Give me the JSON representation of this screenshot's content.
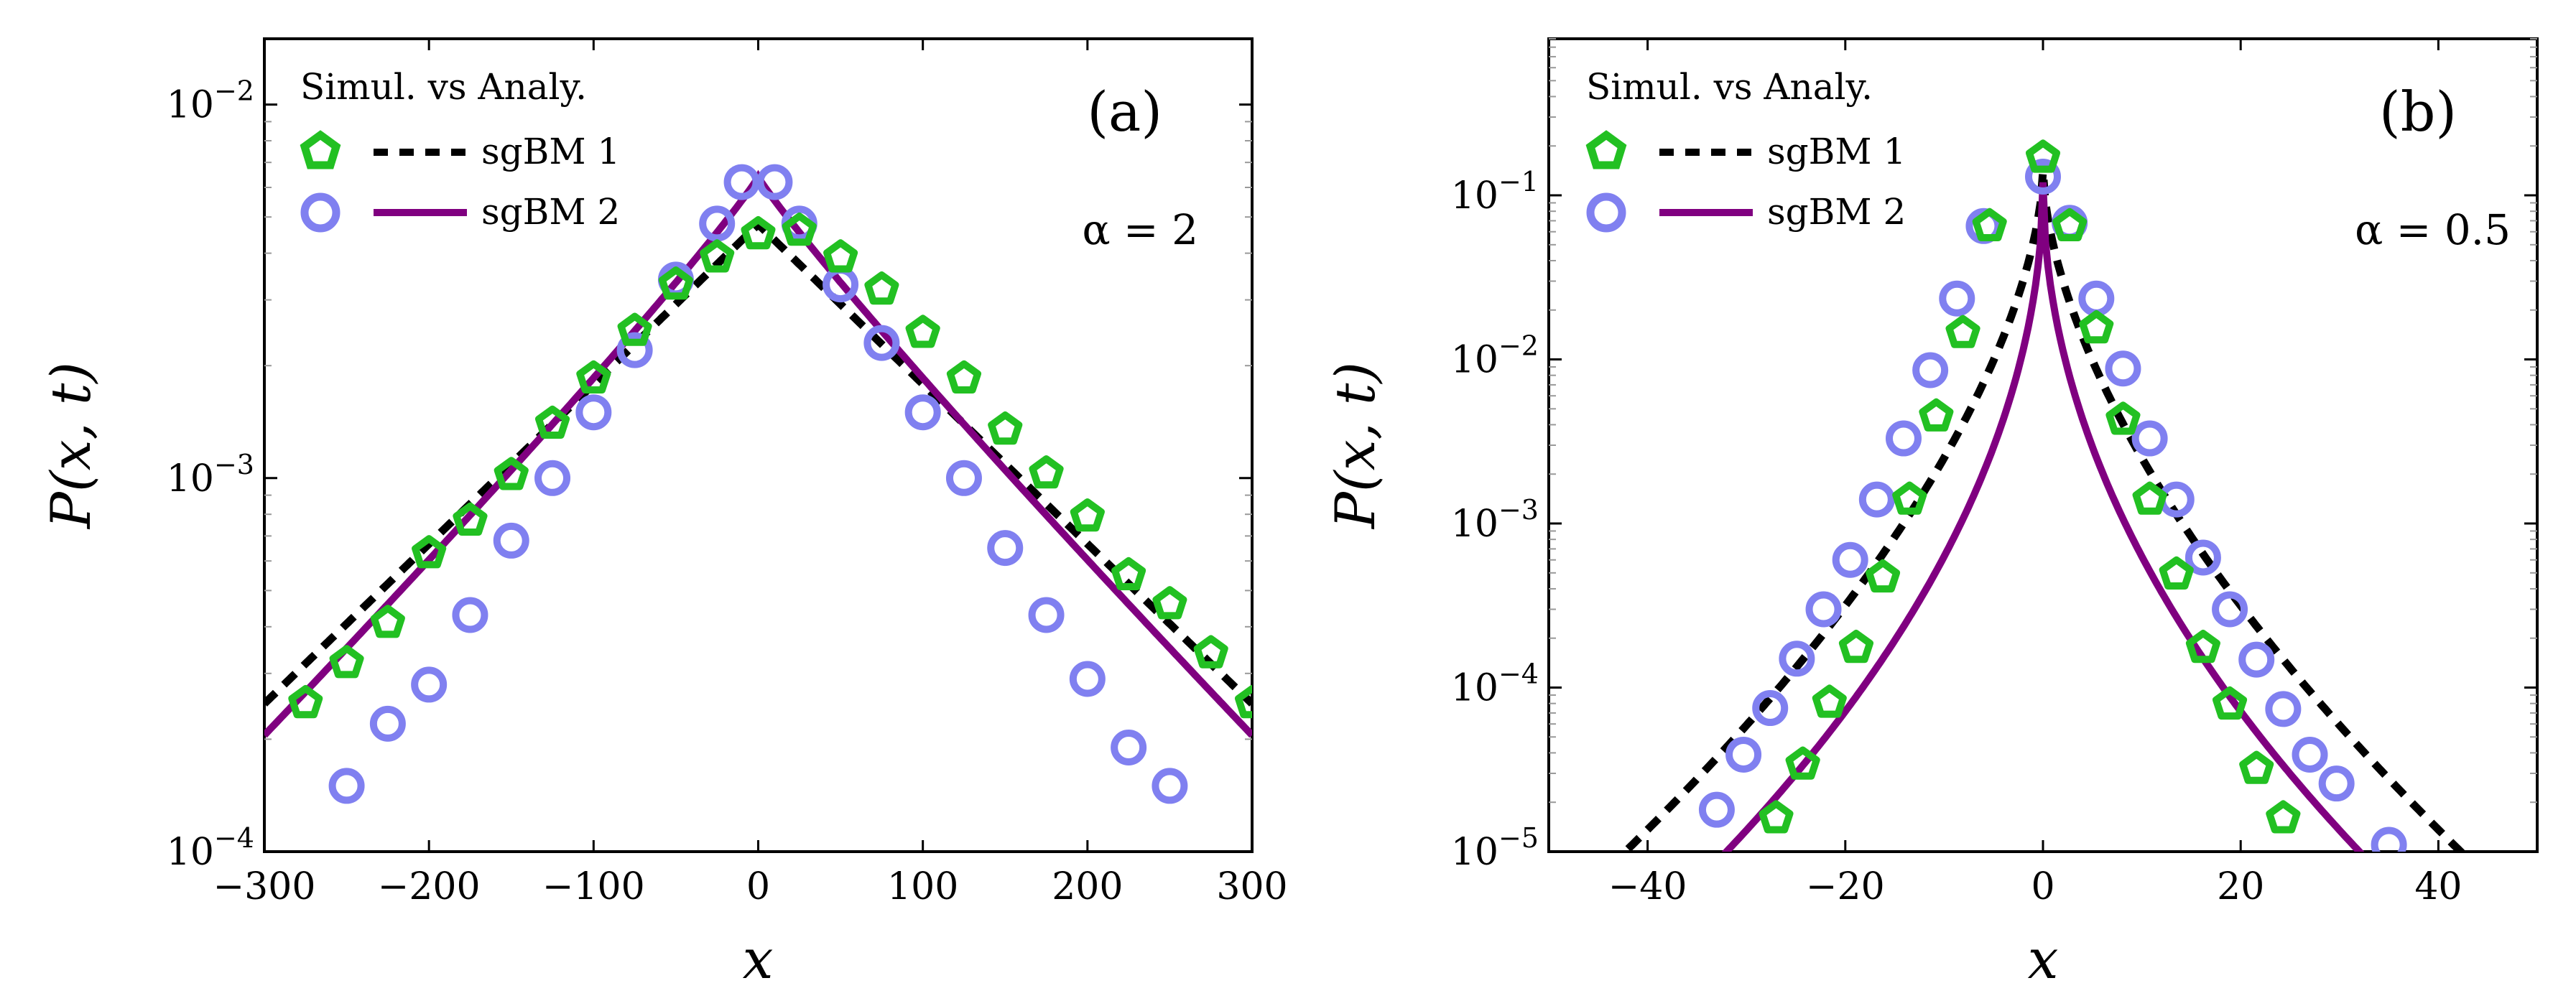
{
  "chart_data": [
    {
      "type": "line",
      "panel_label": "(a)",
      "param_text": "α = 2",
      "xlabel": "x",
      "ylabel": "P(x, t)",
      "xlim": [
        -300,
        300
      ],
      "ylim": [
        0.0001,
        0.015
      ],
      "yscale": "log",
      "legend_title": "Simul. vs Analy.",
      "legend_position": "top-left",
      "xticks": [
        {
          "value": -300,
          "label": "−300"
        },
        {
          "value": -200,
          "label": "−200"
        },
        {
          "value": -100,
          "label": "−100"
        },
        {
          "value": 0,
          "label": "0"
        },
        {
          "value": 100,
          "label": "100"
        },
        {
          "value": 200,
          "label": "200"
        },
        {
          "value": 300,
          "label": "300"
        }
      ],
      "yticks": [
        {
          "value": 0.0001,
          "base": "10",
          "exp": "−4"
        },
        {
          "value": 0.001,
          "base": "10",
          "exp": "−3"
        },
        {
          "value": 0.01,
          "base": "10",
          "exp": "−2"
        }
      ],
      "series": [
        {
          "name": "sgBM 1",
          "color": "#22c022",
          "marker": "pentagon",
          "line_color": "#000000",
          "line_style": "dashed",
          "points": [
            [
              -275,
              0.00025
            ],
            [
              -250,
              0.00032
            ],
            [
              -225,
              0.00041
            ],
            [
              -200,
              0.00063
            ],
            [
              -175,
              0.00077
            ],
            [
              -150,
              0.00102
            ],
            [
              -125,
              0.0014
            ],
            [
              -100,
              0.00185
            ],
            [
              -75,
              0.00248
            ],
            [
              -50,
              0.0033
            ],
            [
              -25,
              0.0039
            ],
            [
              0,
              0.0045
            ],
            [
              25,
              0.0046
            ],
            [
              50,
              0.0039
            ],
            [
              75,
              0.0032
            ],
            [
              100,
              0.00245
            ],
            [
              125,
              0.00185
            ],
            [
              150,
              0.00135
            ],
            [
              175,
              0.00103
            ],
            [
              200,
              0.00079
            ],
            [
              225,
              0.00055
            ],
            [
              250,
              0.00046
            ],
            [
              275,
              0.00034
            ],
            [
              300,
              0.00025
            ]
          ],
          "curve": {
            "type": "two-sided exponential",
            "A": 0.00478,
            "lambda": 0.00985
          }
        },
        {
          "name": "sgBM 2",
          "color": "#8080f0",
          "marker": "circle",
          "line_color": "#800080",
          "line_style": "solid",
          "points": [
            [
              -250,
              0.00015
            ],
            [
              -225,
              0.00022
            ],
            [
              -200,
              0.00028
            ],
            [
              -175,
              0.00043
            ],
            [
              -150,
              0.00068
            ],
            [
              -125,
              0.001
            ],
            [
              -100,
              0.0015
            ],
            [
              -75,
              0.0022
            ],
            [
              -50,
              0.0034
            ],
            [
              -25,
              0.0048
            ],
            [
              -10,
              0.0062
            ],
            [
              10,
              0.0062
            ],
            [
              25,
              0.0048
            ],
            [
              50,
              0.0033
            ],
            [
              75,
              0.0023
            ],
            [
              100,
              0.0015
            ],
            [
              125,
              0.001
            ],
            [
              150,
              0.00065
            ],
            [
              175,
              0.00043
            ],
            [
              200,
              0.00029
            ],
            [
              225,
              0.00019
            ],
            [
              250,
              0.00015
            ]
          ],
          "curve": {
            "type": "stretched exponential",
            "A": 0.0064,
            "lambda": 0.0171,
            "beta": 0.93
          }
        }
      ]
    },
    {
      "type": "line",
      "panel_label": "(b)",
      "param_text": "α = 0.5",
      "xlabel": "x",
      "ylabel": "P(x, t)",
      "xlim": [
        -50,
        50
      ],
      "ylim": [
        1e-05,
        0.9
      ],
      "yscale": "log",
      "legend_title": "Simul. vs Analy.",
      "legend_position": "top-left",
      "xticks": [
        {
          "value": -40,
          "label": "−40"
        },
        {
          "value": -20,
          "label": "−20"
        },
        {
          "value": 0,
          "label": "0"
        },
        {
          "value": 20,
          "label": "20"
        },
        {
          "value": 40,
          "label": "40"
        }
      ],
      "yticks": [
        {
          "value": 1e-05,
          "base": "10",
          "exp": "−5"
        },
        {
          "value": 0.0001,
          "base": "10",
          "exp": "−4"
        },
        {
          "value": 0.001,
          "base": "10",
          "exp": "−3"
        },
        {
          "value": 0.01,
          "base": "10",
          "exp": "−2"
        },
        {
          "value": 0.1,
          "base": "10",
          "exp": "−1"
        }
      ],
      "series": [
        {
          "name": "sgBM 1",
          "color": "#22c022",
          "marker": "pentagon",
          "line_color": "#000000",
          "line_style": "dashed",
          "points": [
            [
              -27,
              1.6e-05
            ],
            [
              -24.3,
              3.4e-05
            ],
            [
              -21.6,
              8.1e-05
            ],
            [
              -18.9,
              0.000175
            ],
            [
              -16.2,
              0.00047
            ],
            [
              -13.5,
              0.0014
            ],
            [
              -10.8,
              0.0045
            ],
            [
              -8.1,
              0.0145
            ],
            [
              -5.4,
              0.065
            ],
            [
              0,
              0.17
            ],
            [
              2.7,
              0.065
            ],
            [
              5.4,
              0.0155
            ],
            [
              8.1,
              0.0043
            ],
            [
              10.8,
              0.0014
            ],
            [
              13.5,
              0.00049
            ],
            [
              16.2,
              0.000175
            ],
            [
              18.9,
              7.9e-05
            ],
            [
              21.6,
              3.2e-05
            ],
            [
              24.3,
              1.6e-05
            ]
          ],
          "curve": {
            "type": "stretched exponential",
            "A": 0.14,
            "lambda": 1.01,
            "beta": 0.6
          }
        },
        {
          "name": "sgBM 2",
          "color": "#8080f0",
          "marker": "circle",
          "line_color": "#800080",
          "line_style": "dashed-solid",
          "points": [
            [
              -33,
              1.8e-05
            ],
            [
              -30.3,
              3.9e-05
            ],
            [
              -27.6,
              7.5e-05
            ],
            [
              -24.9,
              0.00015
            ],
            [
              -22.2,
              0.0003
            ],
            [
              -19.5,
              0.0006
            ],
            [
              -16.8,
              0.0014
            ],
            [
              -14.1,
              0.0033
            ],
            [
              -11.4,
              0.0086
            ],
            [
              -8.7,
              0.0235
            ],
            [
              -6,
              0.065
            ],
            [
              0,
              0.13
            ],
            [
              2.7,
              0.068
            ],
            [
              5.4,
              0.0235
            ],
            [
              8.1,
              0.0088
            ],
            [
              10.8,
              0.0033
            ],
            [
              13.5,
              0.0014
            ],
            [
              16.2,
              0.00062
            ],
            [
              18.9,
              0.0003
            ],
            [
              21.6,
              0.000148
            ],
            [
              24.3,
              7.4e-05
            ],
            [
              27,
              3.9e-05
            ],
            [
              29.7,
              2.6e-05
            ],
            [
              35,
              1.1e-05
            ]
          ],
          "curve": {
            "type": "stretched exponential",
            "A": 0.12,
            "lambda": 1.66,
            "beta": 0.5
          }
        }
      ]
    }
  ]
}
